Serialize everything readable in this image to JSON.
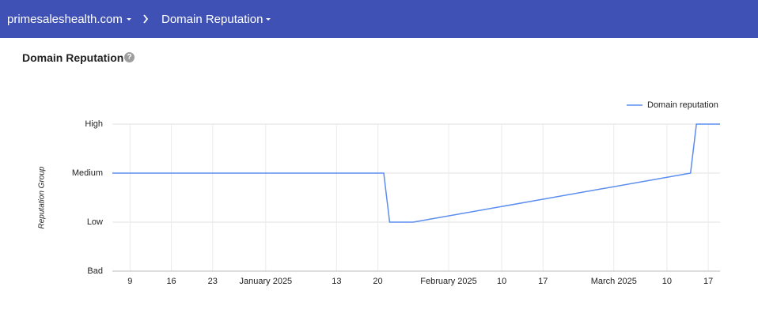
{
  "header": {
    "breadcrumb": [
      "primesaleshealth.com",
      "Domain Reputation"
    ]
  },
  "card": {
    "title": "Domain Reputation",
    "help": "?"
  },
  "chart_data": {
    "type": "line",
    "y_label": "Reputation Group",
    "x": [
      -26,
      20,
      21,
      25,
      72,
      73,
      77
    ],
    "series": [
      {
        "name": "Domain reputation",
        "color": "#5b8def",
        "values": [
          2,
          2,
          1,
          1,
          2,
          3,
          3
        ]
      }
    ],
    "xlim": [
      -26,
      77
    ],
    "ylim": [
      0,
      3
    ],
    "xticks": [
      {
        "value": -23,
        "label": "9"
      },
      {
        "value": -16,
        "label": "16"
      },
      {
        "value": -9,
        "label": "23"
      },
      {
        "value": 0,
        "label": "January 2025"
      },
      {
        "value": 12,
        "label": "13"
      },
      {
        "value": 19,
        "label": "20"
      },
      {
        "value": 31,
        "label": "February 2025"
      },
      {
        "value": 40,
        "label": "10"
      },
      {
        "value": 47,
        "label": "17"
      },
      {
        "value": 59,
        "label": "March 2025"
      },
      {
        "value": 68,
        "label": "10"
      },
      {
        "value": 75,
        "label": "17"
      }
    ],
    "yticks": [
      {
        "value": 0,
        "label": "Bad"
      },
      {
        "value": 1,
        "label": "Low"
      },
      {
        "value": 2,
        "label": "Medium"
      },
      {
        "value": 3,
        "label": "High"
      }
    ],
    "grid": true,
    "legend": "top-right"
  }
}
